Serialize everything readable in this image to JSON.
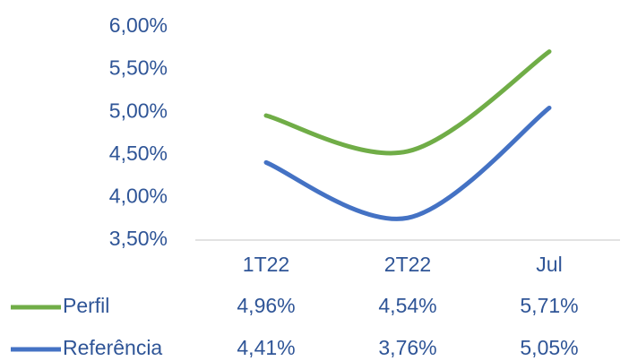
{
  "chart_data": {
    "type": "line",
    "categories": [
      "1T22",
      "2T22",
      "Jul"
    ],
    "series": [
      {
        "name": "Perfil",
        "color": "#70ad47",
        "values": [
          4.96,
          4.54,
          5.71
        ],
        "value_labels": [
          "4,96%",
          "4,54%",
          "5,71%"
        ]
      },
      {
        "name": "Referência",
        "color": "#4472c4",
        "values": [
          4.41,
          3.76,
          5.05
        ],
        "value_labels": [
          "4,41%",
          "3,76%",
          "5,05%"
        ]
      }
    ],
    "ylim": [
      3.5,
      6.0
    ],
    "yticks": [
      {
        "value": 3.5,
        "label": "3,50%"
      },
      {
        "value": 4.0,
        "label": "4,00%"
      },
      {
        "value": 4.5,
        "label": "4,50%"
      },
      {
        "value": 5.0,
        "label": "5,00%"
      },
      {
        "value": 5.5,
        "label": "5,50%"
      },
      {
        "value": 6.0,
        "label": "6,00%"
      }
    ],
    "grid": false
  }
}
